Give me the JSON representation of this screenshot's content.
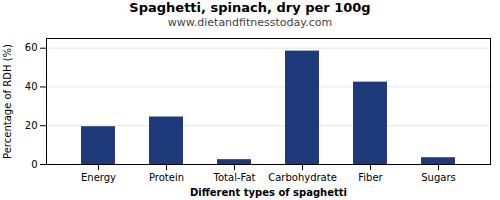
{
  "chart_data": {
    "type": "bar",
    "title": "Spaghetti, spinach, dry per 100g",
    "subtitle": "www.dietandfitnesstoday.com",
    "xlabel": "Different types of spaghetti",
    "ylabel": "Percentage of RDH (%)",
    "categories": [
      "Energy",
      "Protein",
      "Total-Fat",
      "Carbohydrate",
      "Fiber",
      "Sugars"
    ],
    "values": [
      19.5,
      24.5,
      2.5,
      58.5,
      42.5,
      3.5
    ],
    "color": "#1f3a7a",
    "ylim": [
      0,
      65
    ],
    "yticks": [
      0,
      20,
      40,
      60
    ],
    "grid": true
  }
}
